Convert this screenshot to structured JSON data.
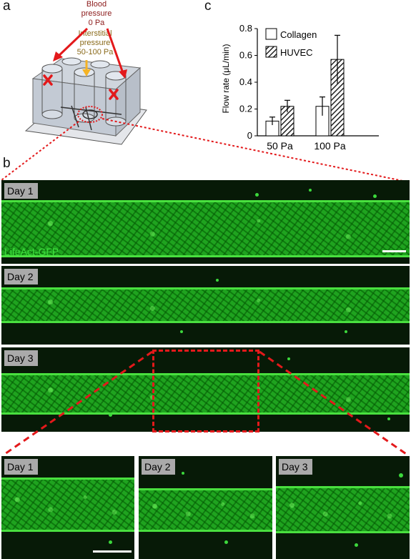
{
  "panels": {
    "a": {
      "letter": "a",
      "blood_pressure": "Blood\npressure\n0 Pa",
      "interstitial_pressure": "Interstitial\npressure\n50-100 Pa",
      "colors": {
        "blood": "#8b1a1a",
        "interstitial": "#8a6a1a",
        "arrow_red": "#e3191b",
        "arrow_yellow": "#f5b324"
      }
    },
    "b": {
      "letter": "b",
      "stain_label": "LifeAct-GFP",
      "days": [
        "Day 1",
        "Day 2",
        "Day 3"
      ],
      "zoom_days": [
        "Day 1",
        "Day 2",
        "Day 3"
      ],
      "colors": {
        "gfp": "#2cc12c",
        "background": "#071a07",
        "zoom_box": "#e3191b"
      }
    },
    "c": {
      "letter": "c"
    }
  },
  "chart_data": {
    "type": "bar",
    "categories": [
      "50 Pa",
      "100 Pa"
    ],
    "series": [
      {
        "name": "Collagen",
        "values": [
          0.11,
          0.22
        ],
        "errors": [
          0.03,
          0.07
        ],
        "fill": "white"
      },
      {
        "name": "HUVEC",
        "values": [
          0.22,
          0.57
        ],
        "errors": [
          0.045,
          0.18
        ],
        "fill": "hatched"
      }
    ],
    "ylabel": "Flow rate (μL/min)",
    "xlabel": "",
    "ylim": [
      0,
      0.8
    ],
    "yticks": [
      "0",
      "0.2",
      "0.4",
      "0.6",
      "0.8"
    ],
    "legend_position": "top-left",
    "grid": false
  }
}
